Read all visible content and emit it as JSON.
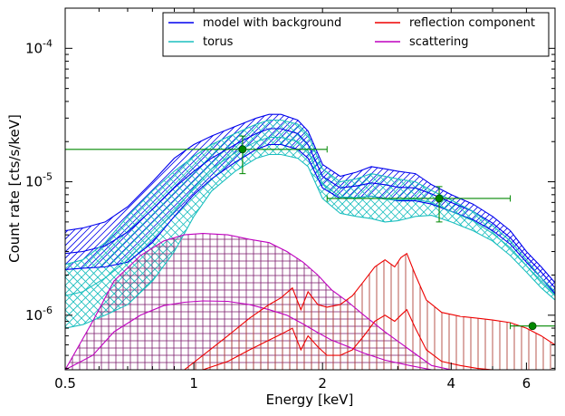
{
  "chart_data": {
    "type": "line",
    "xlabel": "Energy [keV]",
    "ylabel": "Count rate [cts/s/keV]",
    "x_scale": "log",
    "y_scale": "log",
    "xlim": [
      0.5,
      7.0
    ],
    "ylim": [
      3.9e-07,
      0.0002
    ],
    "x_ticks": [
      {
        "value": 0.5,
        "label": "0.5"
      },
      {
        "value": 1,
        "label": "1"
      },
      {
        "value": 2,
        "label": "2"
      },
      {
        "value": 4,
        "label": "4"
      },
      {
        "value": 6,
        "label": "6"
      }
    ],
    "y_ticks": [
      {
        "value": 1e-06,
        "base": "10",
        "exp": "-6"
      },
      {
        "value": 1e-05,
        "base": "10",
        "exp": "-5"
      },
      {
        "value": 0.0001,
        "base": "10",
        "exp": "-4"
      }
    ],
    "legend": {
      "placement": "top-right",
      "columns": 2,
      "entries": [
        {
          "label": "model with background",
          "color": "#0000ee"
        },
        {
          "label": "reflection component",
          "color": "#ee0000"
        },
        {
          "label": "torus",
          "color": "#1bbfbf"
        },
        {
          "label": "scattering",
          "color": "#bf00bf"
        }
      ]
    },
    "series": [
      {
        "key": "model_bg",
        "color": "#0000ee",
        "hatch": "diagonal",
        "x": [
          0.5,
          0.55,
          0.62,
          0.7,
          0.8,
          0.9,
          1.0,
          1.1,
          1.25,
          1.4,
          1.5,
          1.6,
          1.75,
          1.85,
          2.0,
          2.2,
          2.4,
          2.6,
          2.8,
          3.0,
          3.3,
          3.6,
          4.0,
          4.5,
          5.0,
          5.5,
          6.0,
          6.5,
          7.0
        ],
        "upper": [
          4.3e-06,
          4.5e-06,
          5e-06,
          6.5e-06,
          1e-05,
          1.5e-05,
          1.9e-05,
          2.2e-05,
          2.6e-05,
          3e-05,
          3.2e-05,
          3.2e-05,
          2.9e-05,
          2.4e-05,
          1.35e-05,
          1.1e-05,
          1.18e-05,
          1.3e-05,
          1.25e-05,
          1.2e-05,
          1.15e-05,
          9.5e-06,
          8e-06,
          6.8e-06,
          5.5e-06,
          4.3e-06,
          3e-06,
          2.3e-06,
          1.75e-06
        ],
        "lower": [
          2.2e-06,
          2.25e-06,
          2.3e-06,
          2.5e-06,
          3.5e-06,
          5.5e-06,
          8e-06,
          1.05e-05,
          1.4e-05,
          1.75e-05,
          1.9e-05,
          1.9e-05,
          1.75e-05,
          1.5e-05,
          9e-06,
          7.5e-06,
          7.6e-06,
          7.8e-06,
          7.5e-06,
          7.2e-06,
          7.2e-06,
          6.8e-06,
          6e-06,
          5.2e-06,
          4.3e-06,
          3.4e-06,
          2.5e-06,
          1.9e-06,
          1.45e-06
        ],
        "central": [
          2.9e-06,
          3e-06,
          3.3e-06,
          4.2e-06,
          6.2e-06,
          9e-06,
          1.2e-05,
          1.5e-05,
          1.9e-05,
          2.3e-05,
          2.5e-05,
          2.5e-05,
          2.3e-05,
          1.9e-05,
          1.1e-05,
          9e-06,
          9.3e-06,
          9.8e-06,
          9.5e-06,
          9.1e-06,
          9e-06,
          8.1e-06,
          7e-06,
          6e-06,
          4.9e-06,
          3.8e-06,
          2.75e-06,
          2.1e-06,
          1.6e-06
        ]
      },
      {
        "key": "torus",
        "color": "#1bbfbf",
        "hatch": "cross",
        "x": [
          0.5,
          0.55,
          0.62,
          0.7,
          0.8,
          0.9,
          1.0,
          1.1,
          1.25,
          1.4,
          1.5,
          1.6,
          1.75,
          1.85,
          2.0,
          2.2,
          2.4,
          2.6,
          2.8,
          3.0,
          3.3,
          3.6,
          4.0,
          4.5,
          5.0,
          5.5,
          6.0,
          6.5,
          7.0
        ],
        "upper": [
          2.4e-06,
          2.6e-06,
          3.5e-06,
          5.5e-06,
          8.5e-06,
          1.2e-05,
          1.55e-05,
          1.9e-05,
          2.3e-05,
          2.7e-05,
          2.9e-05,
          2.9e-05,
          2.7e-05,
          2.25e-05,
          1.25e-05,
          1e-05,
          1.05e-05,
          1.15e-05,
          1.1e-05,
          1.05e-05,
          1e-05,
          8.6e-06,
          7.3e-06,
          6e-06,
          4.7e-06,
          3.6e-06,
          2.6e-06,
          1.9e-06,
          1.5e-06
        ],
        "lower": [
          8e-07,
          8.5e-07,
          1e-06,
          1.2e-06,
          1.8e-06,
          3e-06,
          5.5e-06,
          8.5e-06,
          1.2e-05,
          1.5e-05,
          1.6e-05,
          1.6e-05,
          1.5e-05,
          1.3e-05,
          7.5e-06,
          5.8e-06,
          5.5e-06,
          5.3e-06,
          5e-06,
          5.1e-06,
          5.5e-06,
          5.6e-06,
          5e-06,
          4.3e-06,
          3.6e-06,
          2.8e-06,
          2.1e-06,
          1.6e-06,
          1.3e-06
        ],
        "central": [
          1.4e-06,
          1.5e-06,
          1.9e-06,
          2.6e-06,
          4e-06,
          6e-06,
          9e-06,
          1.25e-05,
          1.65e-05,
          2e-05,
          2.15e-05,
          2.15e-05,
          2e-05,
          1.7e-05,
          9.7e-06,
          7.7e-06,
          7.6e-06,
          7.8e-06,
          7.4e-06,
          7.3e-06,
          7.4e-06,
          7e-06,
          6e-06,
          5.1e-06,
          4.1e-06,
          3.2e-06,
          2.35e-06,
          1.75e-06,
          1.4e-06
        ]
      },
      {
        "key": "scattering",
        "color": "#bf00bf",
        "hatch": "grid",
        "x": [
          0.5,
          0.58,
          0.65,
          0.75,
          0.85,
          0.95,
          1.05,
          1.2,
          1.35,
          1.5,
          1.65,
          1.8,
          1.95,
          2.1,
          2.3,
          2.5,
          2.8,
          3.2,
          3.6,
          4.0
        ],
        "upper": [
          3.9e-07,
          9e-07,
          1.8e-06,
          2.8e-06,
          3.6e-06,
          4e-06,
          4.1e-06,
          4e-06,
          3.7e-06,
          3.5e-06,
          3e-06,
          2.5e-06,
          2e-06,
          1.55e-06,
          1.25e-06,
          1e-06,
          7.5e-07,
          5.5e-07,
          4.2e-07,
          3.9e-07
        ],
        "lower": [
          3.9e-07,
          3.9e-07,
          3.9e-07,
          3.9e-07,
          3.9e-07,
          3.9e-07,
          3.9e-07,
          3.9e-07,
          3.9e-07,
          3.9e-07,
          3.9e-07,
          3.9e-07,
          3.9e-07,
          3.9e-07,
          3.9e-07,
          3.9e-07,
          3.9e-07,
          3.9e-07,
          3.9e-07,
          3.9e-07
        ],
        "central": [
          3.9e-07,
          5e-07,
          7.5e-07,
          1e-06,
          1.18e-06,
          1.25e-06,
          1.28e-06,
          1.27e-06,
          1.2e-06,
          1.1e-06,
          1e-06,
          8.6e-07,
          7.4e-07,
          6.5e-07,
          5.8e-07,
          5.2e-07,
          4.6e-07,
          4.2e-07,
          3.9e-07,
          3.9e-07
        ]
      },
      {
        "key": "reflection",
        "color": "#ee0000",
        "hatch": "vertical",
        "x": [
          0.95,
          1.05,
          1.2,
          1.35,
          1.5,
          1.6,
          1.7,
          1.78,
          1.85,
          1.95,
          2.05,
          2.2,
          2.35,
          2.5,
          2.65,
          2.8,
          2.95,
          3.05,
          3.15,
          3.3,
          3.5,
          3.8,
          4.2,
          4.6,
          5.0,
          5.5,
          6.0,
          6.5,
          7.0
        ],
        "upper": [
          3.9e-07,
          5e-07,
          7e-07,
          9.5e-07,
          1.2e-06,
          1.35e-06,
          1.6e-06,
          1.1e-06,
          1.5e-06,
          1.2e-06,
          1.15e-06,
          1.2e-06,
          1.4e-06,
          1.8e-06,
          2.3e-06,
          2.6e-06,
          2.3e-06,
          2.7e-06,
          2.9e-06,
          2e-06,
          1.3e-06,
          1.05e-06,
          9.8e-07,
          9.5e-07,
          9.2e-07,
          8.8e-07,
          8e-07,
          7e-07,
          6e-07
        ],
        "lower": [
          3.9e-07,
          3.9e-07,
          3.9e-07,
          3.9e-07,
          3.9e-07,
          3.9e-07,
          3.9e-07,
          3.9e-07,
          3.9e-07,
          3.9e-07,
          3.9e-07,
          3.9e-07,
          3.9e-07,
          3.9e-07,
          3.9e-07,
          3.9e-07,
          3.9e-07,
          3.9e-07,
          3.9e-07,
          3.9e-07,
          3.9e-07,
          3.9e-07,
          3.9e-07,
          3.9e-07,
          3.9e-07,
          3.9e-07,
          3.9e-07,
          3.9e-07,
          3.9e-07
        ],
        "central": [
          3.9e-07,
          3.9e-07,
          4.5e-07,
          5.5e-07,
          6.5e-07,
          7.2e-07,
          8e-07,
          5.5e-07,
          7e-07,
          5.8e-07,
          5e-07,
          5e-07,
          5.5e-07,
          7e-07,
          9e-07,
          1e-06,
          9e-07,
          1e-06,
          1.1e-06,
          8e-07,
          5.5e-07,
          4.5e-07,
          4.2e-07,
          4e-07,
          3.9e-07,
          3.9e-07,
          3.9e-07,
          3.9e-07,
          3.9e-07
        ]
      }
    ],
    "data_points": {
      "color": "#008800",
      "points": [
        {
          "x": 1.3,
          "y": 1.75e-05,
          "xerr": [
            0.5,
            2.05
          ],
          "yerr": [
            1.15e-05,
            2.2e-05
          ]
        },
        {
          "x": 3.75,
          "y": 7.5e-06,
          "xerr": [
            2.05,
            5.5
          ],
          "yerr": [
            5e-06,
            9.2e-06
          ]
        },
        {
          "x": 6.2,
          "y": 8.3e-07,
          "xerr": [
            5.5,
            7.0
          ],
          "yerr": [
            8.1e-07,
            8.5e-07
          ]
        }
      ]
    }
  }
}
